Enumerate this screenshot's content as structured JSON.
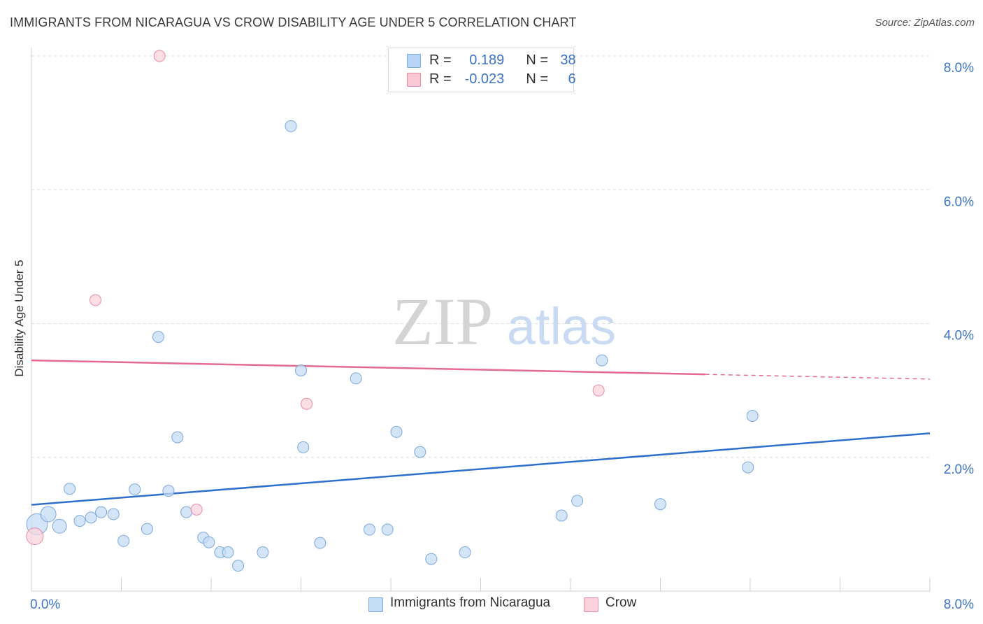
{
  "title": "IMMIGRANTS FROM NICARAGUA VS CROW DISABILITY AGE UNDER 5 CORRELATION CHART",
  "source": "Source: ZipAtlas.com",
  "watermark": {
    "zip": "ZIP",
    "atlas": "atlas"
  },
  "legend": {
    "rows": [
      {
        "r_label": "R =",
        "r_value": "0.189",
        "n_label": "N =",
        "n_value": "38",
        "color": "#b8d4f5",
        "border": "#7aa8e0"
      },
      {
        "r_label": "R =",
        "r_value": "-0.023",
        "n_label": "N =",
        "n_value": "6",
        "color": "#f9c8d5",
        "border": "#e98aa6"
      }
    ]
  },
  "bottom_legend": [
    {
      "label": "Immigrants from Nicaragua",
      "color": "#c5dcf6",
      "border": "#7aa8e0"
    },
    {
      "label": "Crow",
      "color": "#fbd3de",
      "border": "#e98aa6"
    }
  ],
  "chart_data": {
    "type": "scatter",
    "title": "IMMIGRANTS FROM NICARAGUA VS CROW DISABILITY AGE UNDER 5 CORRELATION CHART",
    "xlabel": "",
    "ylabel": "Disability Age Under 5",
    "xlim": [
      0,
      8
    ],
    "ylim": [
      0,
      8
    ],
    "x_tick_labels": [
      "0.0%",
      "8.0%"
    ],
    "y_tick_labels": [
      "2.0%",
      "4.0%",
      "6.0%",
      "8.0%"
    ],
    "y_ticks": [
      2,
      4,
      6,
      8
    ],
    "grid": true,
    "legend_position": "top-center",
    "series": [
      {
        "name": "Immigrants from Nicaragua",
        "color": "#7aa8e0",
        "fill": "#c5dcf6",
        "points": [
          [
            0.05,
            1.0
          ],
          [
            0.15,
            1.15
          ],
          [
            0.25,
            0.97
          ],
          [
            0.34,
            1.53
          ],
          [
            0.43,
            1.05
          ],
          [
            0.53,
            1.1
          ],
          [
            0.62,
            1.18
          ],
          [
            0.73,
            1.15
          ],
          [
            0.82,
            0.75
          ],
          [
            0.92,
            1.52
          ],
          [
            1.03,
            0.93
          ],
          [
            1.13,
            3.8
          ],
          [
            1.22,
            1.5
          ],
          [
            1.3,
            2.3
          ],
          [
            1.38,
            1.18
          ],
          [
            1.53,
            0.8
          ],
          [
            1.58,
            0.73
          ],
          [
            1.68,
            0.58
          ],
          [
            1.75,
            0.58
          ],
          [
            1.84,
            0.38
          ],
          [
            2.06,
            0.58
          ],
          [
            2.31,
            6.95
          ],
          [
            2.4,
            3.3
          ],
          [
            2.42,
            2.15
          ],
          [
            2.57,
            0.72
          ],
          [
            2.89,
            3.18
          ],
          [
            3.01,
            0.92
          ],
          [
            3.17,
            0.92
          ],
          [
            3.25,
            2.38
          ],
          [
            3.46,
            2.08
          ],
          [
            3.56,
            0.48
          ],
          [
            3.86,
            0.58
          ],
          [
            4.72,
            1.13
          ],
          [
            4.86,
            1.35
          ],
          [
            5.08,
            3.45
          ],
          [
            5.6,
            1.3
          ],
          [
            6.38,
            1.85
          ],
          [
            6.42,
            2.62
          ]
        ],
        "trend": {
          "x": [
            0,
            8
          ],
          "y": [
            1.29,
            2.36
          ]
        }
      },
      {
        "name": "Crow",
        "color": "#e98aa6",
        "fill": "#fbd3de",
        "points": [
          [
            0.03,
            0.82
          ],
          [
            0.57,
            4.35
          ],
          [
            1.14,
            8.0
          ],
          [
            1.47,
            1.22
          ],
          [
            2.45,
            2.8
          ],
          [
            5.05,
            3.0
          ]
        ],
        "trend": {
          "x": [
            0,
            6.0
          ],
          "y": [
            3.45,
            3.24
          ],
          "dashed_to": [
            8,
            3.17
          ]
        }
      }
    ]
  }
}
